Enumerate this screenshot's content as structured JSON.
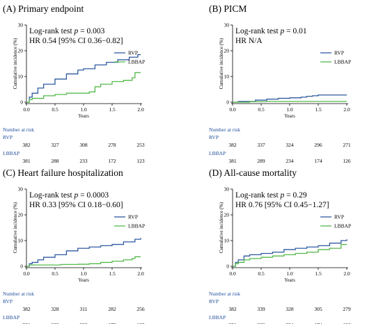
{
  "panels": [
    {
      "title": "(A) Primary endpoint",
      "stat_line1_prefix": "Log-rank test ",
      "stat_p_symbol": "p",
      "stat_line1_suffix": " = 0.003",
      "stat_line2": "HR 0.54 [95% CI 0.36−0.82]",
      "risk_header": "Number at risk",
      "risk": {
        "RVP": [
          "382",
          "327",
          "308",
          "278",
          "253"
        ],
        "LBBAP": [
          "381",
          "288",
          "233",
          "172",
          "123"
        ]
      }
    },
    {
      "title": "(B) PICM",
      "stat_line1_prefix": "Log-rank test ",
      "stat_p_symbol": "p",
      "stat_line1_suffix": " = 0.01",
      "stat_line2": "HR N/A",
      "risk_header": "Number at risk",
      "risk": {
        "RVP": [
          "382",
          "337",
          "324",
          "296",
          "271"
        ],
        "LBBAP": [
          "381",
          "289",
          "234",
          "174",
          "126"
        ]
      }
    },
    {
      "title": "(C) Heart failure hospitalization",
      "stat_line1_prefix": "Log-rank test ",
      "stat_p_symbol": "p",
      "stat_line1_suffix": " = 0.0003",
      "stat_line2": "HR 0.33 [95% CI 0.18−0.60]",
      "risk_header": "Number at risk",
      "risk": {
        "RVP": [
          "382",
          "328",
          "311",
          "282",
          "256"
        ],
        "LBBAP": [
          "381",
          "288",
          "233",
          "172",
          "123"
        ]
      }
    },
    {
      "title": "(D) All-cause mortality",
      "stat_line1_prefix": "Log-rank test ",
      "stat_p_symbol": "p",
      "stat_line1_suffix": " = 0.29",
      "stat_line2": "HR 0.76 [95% CI 0.45−1.27]",
      "risk_header": "Number at risk",
      "risk": {
        "RVP": [
          "382",
          "339",
          "328",
          "305",
          "279"
        ],
        "LBBAP": [
          "381",
          "289",
          "234",
          "174",
          "126"
        ]
      }
    }
  ],
  "colors": {
    "RVP": "#2e5aa0",
    "LBBAP": "#54b94a"
  },
  "chart_data": [
    {
      "type": "line",
      "title": "(A) Primary endpoint",
      "xlabel": "Years",
      "ylabel": "Cumulative incidence (%)",
      "xlim": [
        0,
        2
      ],
      "ylim": [
        0,
        30
      ],
      "xticks": [
        "0.0",
        "0.5",
        "1.0",
        "1.5",
        "2.0"
      ],
      "yticks": [
        "0",
        "10",
        "20",
        "30"
      ],
      "legend": "right",
      "series": [
        {
          "name": "RVP",
          "x": [
            0,
            0.05,
            0.1,
            0.2,
            0.3,
            0.5,
            0.7,
            0.9,
            1.0,
            1.2,
            1.4,
            1.6,
            1.8,
            1.95,
            2.0
          ],
          "y": [
            0,
            2,
            3.5,
            5.5,
            7,
            9,
            11,
            12.5,
            13,
            14.5,
            15.5,
            16.5,
            17.5,
            18.5,
            18.5
          ]
        },
        {
          "name": "LBBAP",
          "x": [
            0,
            0.05,
            0.1,
            0.3,
            0.5,
            0.7,
            0.9,
            1.1,
            1.2,
            1.3,
            1.5,
            1.7,
            1.8,
            1.85,
            1.9,
            2.0
          ],
          "y": [
            0,
            1,
            1.5,
            2.5,
            3,
            3.5,
            3.5,
            4,
            6,
            7,
            8,
            8.5,
            8.5,
            9.5,
            11.5,
            11.5
          ]
        }
      ]
    },
    {
      "type": "line",
      "title": "(B) PICM",
      "xlabel": "Years",
      "ylabel": "Cumulative incidence (%)",
      "xlim": [
        0,
        2
      ],
      "ylim": [
        0,
        30
      ],
      "xticks": [
        "0.0",
        "0.5",
        "1.0",
        "1.5",
        "2.0"
      ],
      "yticks": [
        "0",
        "10",
        "20",
        "30"
      ],
      "legend": "right",
      "series": [
        {
          "name": "RVP",
          "x": [
            0,
            0.1,
            0.4,
            0.6,
            0.8,
            1.0,
            1.2,
            1.3,
            1.4,
            1.5,
            2.0
          ],
          "y": [
            0,
            0.3,
            0.8,
            1.2,
            1.5,
            1.7,
            2.0,
            2.3,
            2.5,
            2.8,
            2.8
          ]
        },
        {
          "name": "LBBAP",
          "x": [
            0,
            0.3,
            0.6,
            2.0
          ],
          "y": [
            0,
            0.2,
            0.3,
            0.3
          ]
        }
      ]
    },
    {
      "type": "line",
      "title": "(C) Heart failure hospitalization",
      "xlabel": "Years",
      "ylabel": "Cumulative incidence (%)",
      "xlim": [
        0,
        2
      ],
      "ylim": [
        0,
        30
      ],
      "xticks": [
        "0.0",
        "0.5",
        "1.0",
        "1.5",
        "2.0"
      ],
      "yticks": [
        "0",
        "10",
        "20",
        "30"
      ],
      "legend": "right",
      "series": [
        {
          "name": "RVP",
          "x": [
            0,
            0.05,
            0.1,
            0.2,
            0.3,
            0.5,
            0.7,
            0.9,
            1.1,
            1.3,
            1.5,
            1.7,
            1.9,
            2.0
          ],
          "y": [
            0,
            1,
            1.5,
            2.5,
            3.5,
            4.5,
            6,
            7,
            7.5,
            8,
            8.5,
            9.5,
            10.5,
            11
          ]
        },
        {
          "name": "LBBAP",
          "x": [
            0,
            0.05,
            0.3,
            0.6,
            0.9,
            1.1,
            1.3,
            1.5,
            1.7,
            1.85,
            1.9,
            2.0
          ],
          "y": [
            0,
            0.5,
            0.5,
            0.7,
            0.8,
            1.0,
            1.5,
            2.0,
            2.5,
            3.0,
            3.7,
            3.7
          ]
        }
      ]
    },
    {
      "type": "line",
      "title": "(D) All-cause mortality",
      "xlabel": "Years",
      "ylabel": "Cumulative incidence (%)",
      "xlim": [
        0,
        2
      ],
      "ylim": [
        0,
        30
      ],
      "xticks": [
        "0.0",
        "0.5",
        "1.0",
        "1.5",
        "2.0"
      ],
      "yticks": [
        "0",
        "10",
        "20",
        "30"
      ],
      "legend": "right",
      "series": [
        {
          "name": "RVP",
          "x": [
            0,
            0.05,
            0.1,
            0.2,
            0.3,
            0.5,
            0.7,
            0.9,
            1.1,
            1.3,
            1.5,
            1.7,
            1.9,
            2.0
          ],
          "y": [
            0,
            1.5,
            2.5,
            4,
            4.5,
            5,
            5.5,
            6.5,
            7,
            7.5,
            8,
            9,
            10,
            10.5
          ]
        },
        {
          "name": "LBBAP",
          "x": [
            0,
            0.05,
            0.1,
            0.2,
            0.3,
            0.5,
            0.7,
            0.9,
            1.1,
            1.3,
            1.5,
            1.7,
            1.9,
            2.0
          ],
          "y": [
            0,
            1,
            1.5,
            2.5,
            3,
            3.5,
            4,
            4.5,
            5,
            5.5,
            6.5,
            7,
            8.5,
            8.5
          ]
        }
      ]
    }
  ]
}
